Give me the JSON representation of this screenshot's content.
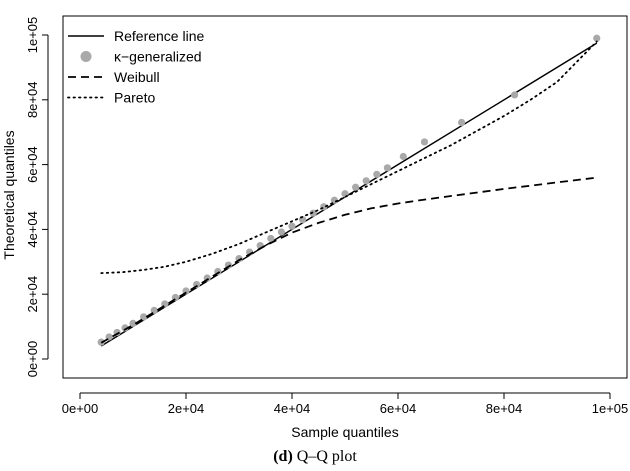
{
  "caption": {
    "letter": "(d)",
    "text": "Q–Q plot"
  },
  "chart_data": {
    "type": "scatter",
    "xlabel": "Sample quantiles",
    "ylabel": "Theoretical quantiles",
    "xlim": [
      0,
      100000
    ],
    "ylim": [
      0,
      100000
    ],
    "xticks": [
      0,
      20000,
      40000,
      60000,
      80000,
      100000
    ],
    "xtick_labels": [
      "0e+00",
      "2e+04",
      "4e+04",
      "6e+04",
      "8e+04",
      "1e+05"
    ],
    "yticks": [
      0,
      20000,
      40000,
      60000,
      80000,
      100000
    ],
    "ytick_labels": [
      "0e+00",
      "2e+04",
      "4e+04",
      "6e+04",
      "8e+04",
      "1e+05"
    ],
    "grid": false,
    "legend_position": "top-left",
    "series": [
      {
        "name": "Reference line",
        "kind": "line",
        "style": "solid",
        "color": "#000000",
        "x": [
          4000,
          97500
        ],
        "y": [
          4000,
          97500
        ]
      },
      {
        "name": "κ−generalized",
        "kind": "points",
        "color": "#a9a9a9",
        "x": [
          4000,
          5500,
          7000,
          8500,
          10000,
          12000,
          14000,
          16000,
          18000,
          20000,
          22000,
          24000,
          26000,
          28000,
          30000,
          32000,
          34000,
          36000,
          38000,
          40000,
          42000,
          44000,
          46000,
          48000,
          50000,
          52000,
          54000,
          56000,
          58000,
          61000,
          65000,
          72000,
          82000,
          97500
        ],
        "y": [
          5200,
          6800,
          8200,
          9600,
          11000,
          13000,
          15000,
          17000,
          19000,
          21000,
          23000,
          25000,
          27000,
          29000,
          31000,
          33000,
          35000,
          37200,
          39200,
          41000,
          43000,
          45000,
          47000,
          49000,
          51000,
          53000,
          55000,
          57000,
          59000,
          62500,
          67000,
          73000,
          81500,
          99000
        ]
      },
      {
        "name": "Weibull",
        "kind": "line",
        "style": "dashed",
        "color": "#000000",
        "x": [
          4000,
          10000,
          15000,
          20000,
          25000,
          30000,
          35000,
          40000,
          45000,
          50000,
          55000,
          60000,
          65000,
          70000,
          75000,
          80000,
          85000,
          90000,
          97500
        ],
        "y": [
          5000,
          10500,
          15500,
          20500,
          25500,
          30500,
          35000,
          39000,
          42000,
          44500,
          46500,
          48000,
          49200,
          50300,
          51400,
          52500,
          53500,
          54500,
          56000
        ]
      },
      {
        "name": "Pareto",
        "kind": "line",
        "style": "dotdash",
        "color": "#000000",
        "x": [
          4000,
          8000,
          12000,
          16000,
          20000,
          25000,
          30000,
          35000,
          40000,
          45000,
          50000,
          55000,
          60000,
          65000,
          70000,
          75000,
          80000,
          85000,
          90000,
          97500
        ],
        "y": [
          26500,
          26800,
          27500,
          28500,
          30000,
          32500,
          35500,
          39000,
          42500,
          46000,
          50000,
          54000,
          58000,
          62000,
          66000,
          70500,
          75000,
          80000,
          85500,
          98000
        ]
      }
    ]
  }
}
